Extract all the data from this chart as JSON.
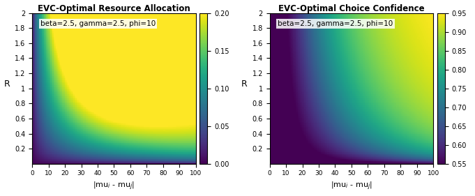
{
  "beta": 2.5,
  "gamma": 2.5,
  "phi": 10,
  "x_min": 0,
  "x_max": 100,
  "y_min": 0,
  "y_max": 2,
  "x_scale": 100.0,
  "x_ticks": [
    0,
    10,
    20,
    30,
    40,
    50,
    60,
    70,
    80,
    90,
    100
  ],
  "y_ticks": [
    0.2,
    0.4,
    0.6,
    0.8,
    1.0,
    1.2,
    1.4,
    1.6,
    1.8,
    2.0
  ],
  "xlabel": "|mu_i - mu_j|",
  "ylabel": "R",
  "title1": "EVC-Optimal Resource Allocation",
  "title2": "EVC-Optimal Choice Confidence",
  "annotation": "beta=2.5, gamma=2.5, phi=10",
  "cbar1_ticks": [
    0,
    0.05,
    0.1,
    0.15,
    0.2
  ],
  "cbar2_ticks": [
    0.55,
    0.6,
    0.65,
    0.7,
    0.75,
    0.8,
    0.85,
    0.9,
    0.95
  ],
  "colormap": "viridis",
  "figsize": [
    6.81,
    2.81
  ],
  "dpi": 100
}
